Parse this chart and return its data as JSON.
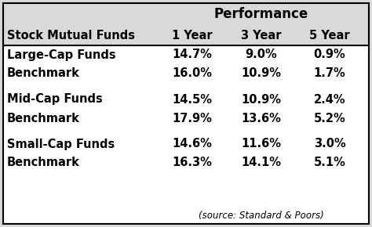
{
  "header_group": "Performance",
  "col_headers": [
    "Stock Mutual Funds",
    "1 Year",
    "3 Year",
    "5 Year"
  ],
  "rows": [
    [
      "Large-Cap Funds",
      "14.7%",
      "9.0%",
      "0.9%"
    ],
    [
      "Benchmark",
      "16.0%",
      "10.9%",
      "1.7%"
    ],
    [
      "",
      "",
      "",
      ""
    ],
    [
      "Mid-Cap Funds",
      "14.5%",
      "10.9%",
      "2.4%"
    ],
    [
      "Benchmark",
      "17.9%",
      "13.6%",
      "5.2%"
    ],
    [
      "",
      "",
      "",
      ""
    ],
    [
      "Small-Cap Funds",
      "14.6%",
      "11.6%",
      "3.0%"
    ],
    [
      "Benchmark",
      "16.3%",
      "14.1%",
      "5.1%"
    ]
  ],
  "source_note": "(source: Standard & Poors)",
  "bg_color": "#d9d9d9",
  "body_bg": "#ffffff",
  "border_color": "#000000",
  "text_color": "#000000",
  "font_size": 10.5,
  "source_font_size": 8.5
}
